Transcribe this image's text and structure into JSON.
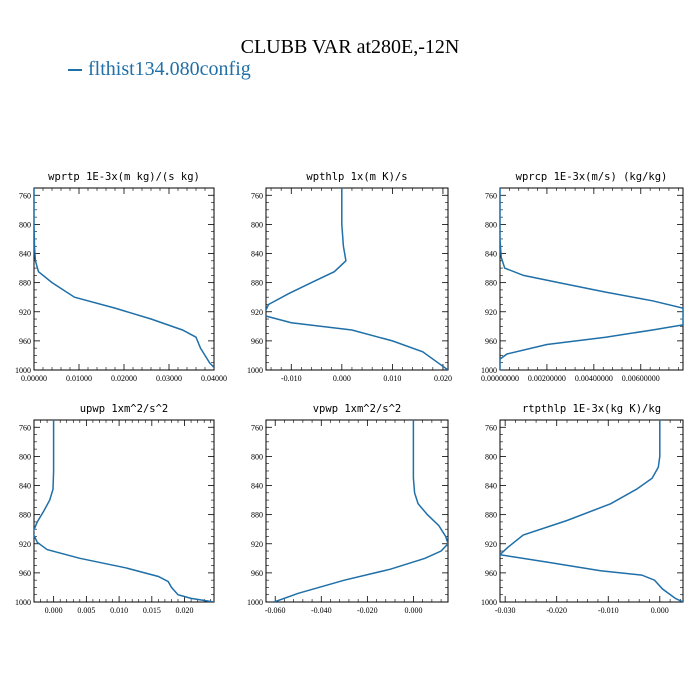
{
  "figure": {
    "title": "CLUBB VAR at280E,-12N",
    "legend_label": "flthist134.080config",
    "series_color": "#1f6fa8"
  },
  "chart_data": [
    {
      "type": "line",
      "title": "wprtp   1E-3x(m kg)/(s kg)",
      "xlim": [
        0.0,
        0.04
      ],
      "ylim": [
        1000,
        750
      ],
      "xticks": [
        0.0,
        0.01,
        0.02,
        0.03,
        0.04
      ],
      "xtick_labels": [
        "0.00000",
        "0.01000",
        "0.02000",
        "0.03000",
        "0.04000"
      ],
      "yticks": [
        760,
        800,
        840,
        880,
        920,
        960,
        1000
      ],
      "series": [
        {
          "x": [
            0.0,
            0.0,
            0.0001,
            0.0003,
            0.001,
            0.004,
            0.009,
            0.018,
            0.026,
            0.033,
            0.036,
            0.037,
            0.038,
            0.039,
            0.0405
          ],
          "y": [
            750,
            800,
            830,
            850,
            865,
            880,
            900,
            915,
            930,
            945,
            955,
            970,
            980,
            990,
            1000
          ]
        }
      ]
    },
    {
      "type": "line",
      "title": "wpthlp   1x(m K)/s",
      "xlim": [
        -0.015,
        0.021
      ],
      "ylim": [
        1000,
        750
      ],
      "xticks": [
        -0.01,
        0.0,
        0.01,
        0.02
      ],
      "xtick_labels": [
        "-0.010",
        "0.000",
        "0.010",
        "0.020"
      ],
      "yticks": [
        760,
        800,
        840,
        880,
        920,
        960,
        1000
      ],
      "series": [
        {
          "x": [
            0.0,
            0.0,
            0.0003,
            0.0008,
            -0.0015,
            -0.006,
            -0.0105,
            -0.0145,
            -0.0155,
            -0.01,
            0.002,
            0.01,
            0.016,
            0.019,
            0.021
          ],
          "y": [
            750,
            800,
            830,
            850,
            865,
            880,
            895,
            910,
            925,
            935,
            945,
            960,
            975,
            990,
            1000
          ]
        }
      ]
    },
    {
      "type": "line",
      "title": "wprcp   1E-3x(m/s) (kg/kg)",
      "xlim": [
        0.0,
        0.0078
      ],
      "ylim": [
        1000,
        750
      ],
      "xticks": [
        0.0,
        0.002,
        0.004,
        0.006
      ],
      "xtick_labels": [
        "0.00000000",
        "0.00200000",
        "0.00400000",
        "0.00600000"
      ],
      "yticks": [
        760,
        800,
        840,
        880,
        920,
        960,
        1000
      ],
      "series": [
        {
          "x": [
            0.0,
            0.0,
            5e-05,
            0.0002,
            0.001,
            0.0025,
            0.0045,
            0.0065,
            0.0078,
            0.0078,
            0.0065,
            0.0045,
            0.002,
            0.0003,
            0.0,
            0.0
          ],
          "y": [
            750,
            820,
            845,
            860,
            870,
            880,
            893,
            905,
            915,
            938,
            945,
            955,
            965,
            978,
            985,
            1000
          ]
        }
      ]
    },
    {
      "type": "line",
      "title": "upwp   1xm^2/s^2",
      "xlim": [
        -0.003,
        0.0245
      ],
      "ylim": [
        1000,
        750
      ],
      "xticks": [
        0.0,
        0.005,
        0.01,
        0.015,
        0.02
      ],
      "xtick_labels": [
        "0.000",
        "0.005",
        "0.010",
        "0.015",
        "0.020"
      ],
      "yticks": [
        760,
        800,
        840,
        880,
        920,
        960,
        1000
      ],
      "series": [
        {
          "x": [
            0.0,
            0.0,
            -0.0001,
            -0.0006,
            -0.0015,
            -0.0025,
            -0.0032,
            -0.0025,
            -0.001,
            0.004,
            0.011,
            0.016,
            0.0175,
            0.018,
            0.019,
            0.021,
            0.0245
          ],
          "y": [
            750,
            820,
            845,
            860,
            875,
            890,
            905,
            918,
            928,
            940,
            953,
            965,
            972,
            980,
            990,
            995,
            1000
          ]
        }
      ]
    },
    {
      "type": "line",
      "title": "vpwp   1xm^2/s^2",
      "xlim": [
        -0.064,
        0.015
      ],
      "ylim": [
        1000,
        750
      ],
      "xticks": [
        -0.06,
        -0.04,
        -0.02,
        0.0
      ],
      "xtick_labels": [
        "-0.060",
        "-0.040",
        "-0.020",
        "0.000"
      ],
      "yticks": [
        760,
        800,
        840,
        880,
        920,
        960,
        1000
      ],
      "series": [
        {
          "x": [
            0.0,
            0.0,
            0.0005,
            0.002,
            0.006,
            0.011,
            0.014,
            0.015,
            0.012,
            0.005,
            -0.01,
            -0.03,
            -0.05,
            -0.0605
          ],
          "y": [
            750,
            830,
            850,
            865,
            880,
            895,
            910,
            920,
            930,
            940,
            955,
            970,
            988,
            1000
          ]
        }
      ]
    },
    {
      "type": "line",
      "title": "rtpthlp   1E-3x(kg K)/kg",
      "xlim": [
        -0.031,
        0.0045
      ],
      "ylim": [
        1000,
        750
      ],
      "xticks": [
        -0.03,
        -0.02,
        -0.01,
        0.0
      ],
      "xtick_labels": [
        "-0.030",
        "-0.020",
        "-0.010",
        "0.000"
      ],
      "yticks": [
        760,
        800,
        840,
        880,
        920,
        960,
        1000
      ],
      "series": [
        {
          "x": [
            0.0,
            0.0,
            -0.0003,
            -0.0015,
            -0.0045,
            -0.0095,
            -0.018,
            -0.0265,
            -0.0295,
            -0.031,
            -0.022,
            -0.0115,
            -0.0035,
            -0.001,
            0.0005,
            0.003,
            0.0045
          ],
          "y": [
            750,
            800,
            815,
            830,
            845,
            865,
            888,
            908,
            925,
            935,
            945,
            957,
            963,
            970,
            982,
            995,
            1000
          ]
        }
      ]
    }
  ]
}
